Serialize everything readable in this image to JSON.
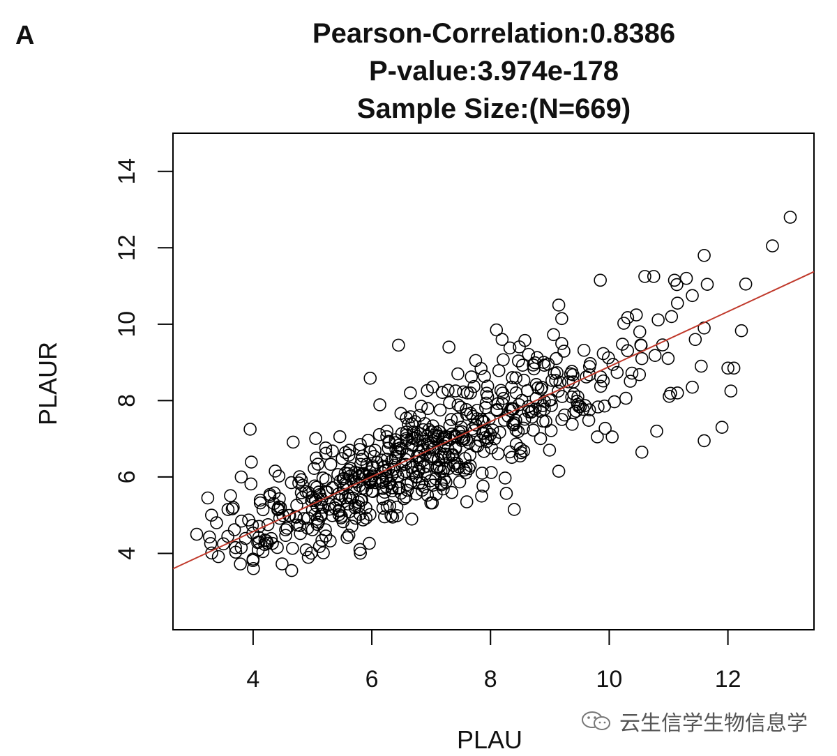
{
  "panel_label": "A",
  "title_lines": [
    "Pearson-Correlation:0.8386",
    "P-value:3.974e-178",
    "Sample Size:(N=669)"
  ],
  "watermark": {
    "icon": "wechat-icon",
    "text": "云生信学生物信息学"
  },
  "colors": {
    "points": "#000000",
    "fit_line": "#c0392b",
    "axis": "#000000"
  },
  "chart_data": {
    "type": "scatter",
    "title": "Pearson-Correlation:0.8386 P-value:3.974e-178 Sample Size:(N=669)",
    "xlabel": "PLAU",
    "ylabel": "PLAUR",
    "xlim": [
      2.65,
      13.45
    ],
    "ylim": [
      2.0,
      15.0
    ],
    "xticks": [
      4,
      6,
      8,
      10,
      12
    ],
    "yticks": [
      4,
      6,
      8,
      10,
      12,
      14
    ],
    "grid": false,
    "n": 669,
    "regression": {
      "intercept": 1.69,
      "slope": 0.72
    },
    "generator": {
      "x_mean": 6.9,
      "x_sd": 1.75,
      "noise_sd": 0.75,
      "seed": 669
    },
    "points": [
      [
        3.05,
        4.5
      ],
      [
        3.3,
        5.0
      ],
      [
        3.5,
        4.25
      ],
      [
        3.8,
        4.15
      ],
      [
        3.8,
        6.0
      ],
      [
        3.95,
        7.25
      ],
      [
        4.0,
        3.85
      ],
      [
        4.1,
        4.3
      ],
      [
        4.2,
        4.35
      ],
      [
        4.65,
        3.55
      ],
      [
        5.8,
        4.1
      ],
      [
        6.45,
        9.45
      ],
      [
        6.65,
        8.2
      ],
      [
        7.3,
        9.4
      ],
      [
        7.45,
        8.7
      ],
      [
        7.75,
        9.05
      ],
      [
        8.1,
        9.85
      ],
      [
        8.4,
        5.15
      ],
      [
        9.15,
        10.5
      ],
      [
        9.35,
        8.7
      ],
      [
        9.85,
        11.15
      ],
      [
        10.6,
        11.25
      ],
      [
        10.75,
        11.25
      ],
      [
        11.1,
        11.15
      ],
      [
        11.3,
        11.2
      ],
      [
        11.6,
        11.8
      ],
      [
        12.3,
        11.05
      ],
      [
        12.75,
        12.05
      ],
      [
        13.05,
        12.8
      ],
      [
        11.6,
        6.95
      ],
      [
        11.9,
        7.3
      ],
      [
        12.0,
        8.85
      ],
      [
        12.05,
        8.25
      ],
      [
        12.1,
        8.85
      ],
      [
        11.6,
        9.9
      ],
      [
        11.45,
        9.6
      ],
      [
        10.55,
        6.65
      ],
      [
        10.05,
        7.05
      ],
      [
        9.8,
        7.05
      ],
      [
        9.15,
        6.15
      ],
      [
        8.5,
        6.55
      ],
      [
        7.85,
        5.5
      ],
      [
        7.6,
        5.35
      ],
      [
        11.15,
        10.55
      ],
      [
        11.05,
        10.2
      ],
      [
        11.4,
        10.75
      ],
      [
        11.55,
        8.9
      ],
      [
        11.15,
        8.2
      ],
      [
        11.4,
        8.35
      ],
      [
        10.8,
        7.2
      ]
    ]
  }
}
